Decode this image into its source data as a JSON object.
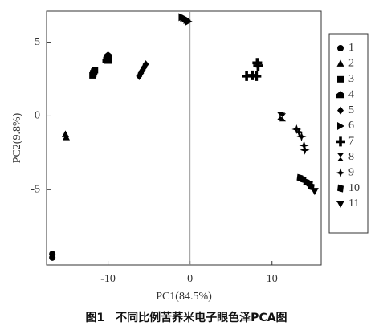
{
  "chart_data": {
    "type": "scatter",
    "caption": "图1　不同比例苦荞米电子眼色泽PCA图",
    "x_label": "PC1(84.5%)",
    "y_label": "PC2(9.8%)",
    "xlim": [
      -17.5,
      16
    ],
    "ylim": [
      -10.1,
      7.1
    ],
    "xticks": [
      -10,
      0,
      10
    ],
    "yticks": [
      5,
      0,
      -5
    ],
    "series": [
      {
        "name": "1",
        "marker": "circle",
        "color": "#000000",
        "x": [
          -16.8,
          -16.8
        ],
        "values": [
          -9.35,
          -9.6
        ]
      },
      {
        "name": "2",
        "marker": "triangle-up",
        "color": "#000000",
        "x": [
          -15.2,
          -15.1
        ],
        "values": [
          -1.25,
          -1.45
        ]
      },
      {
        "name": "3",
        "marker": "square",
        "color": "#000000",
        "x": [
          -11.6,
          -11.7,
          -11.8,
          -11.9,
          -11.8
        ],
        "values": [
          3.1,
          3.0,
          2.9,
          2.75,
          2.85
        ]
      },
      {
        "name": "4",
        "marker": "pentagon",
        "color": "#000000",
        "x": [
          -10.0,
          -10.1,
          -10.0,
          -10.2
        ],
        "values": [
          4.1,
          3.95,
          3.75,
          3.8
        ]
      },
      {
        "name": "5",
        "marker": "diamond",
        "color": "#000000",
        "x": [
          -6.2,
          -6.0,
          -5.8,
          -5.6,
          -5.4
        ],
        "values": [
          2.7,
          2.9,
          3.1,
          3.3,
          3.5
        ]
      },
      {
        "name": "6",
        "marker": "triangle-right",
        "color": "#000000",
        "x": [
          -1.0,
          -0.8,
          -0.6,
          -0.4,
          -0.2
        ],
        "values": [
          6.7,
          6.65,
          6.6,
          6.5,
          6.4
        ]
      },
      {
        "name": "7",
        "marker": "plus",
        "color": "#000000",
        "x": [
          6.9,
          7.6,
          8.2,
          8.3,
          8.1
        ],
        "values": [
          2.7,
          2.75,
          3.6,
          3.4,
          2.7
        ]
      },
      {
        "name": "8",
        "marker": "hourglass",
        "color": "#000000",
        "x": [
          11.0,
          11.2,
          11.3
        ],
        "values": [
          0.0,
          -0.05,
          -0.1
        ]
      },
      {
        "name": "9",
        "marker": "star4",
        "color": "#000000",
        "x": [
          13.0,
          13.3,
          13.6,
          13.9,
          14.0
        ],
        "values": [
          -0.9,
          -1.1,
          -1.4,
          -2.0,
          -2.3
        ]
      },
      {
        "name": "10",
        "marker": "parallelogram",
        "color": "#000000",
        "x": [
          13.4,
          13.8,
          14.2,
          14.6,
          14.8
        ],
        "values": [
          -4.2,
          -4.3,
          -4.5,
          -4.6,
          -4.8
        ]
      },
      {
        "name": "11",
        "marker": "triangle-down",
        "color": "#000000",
        "x": [
          15.2
        ],
        "values": [
          -5.1
        ]
      }
    ]
  }
}
